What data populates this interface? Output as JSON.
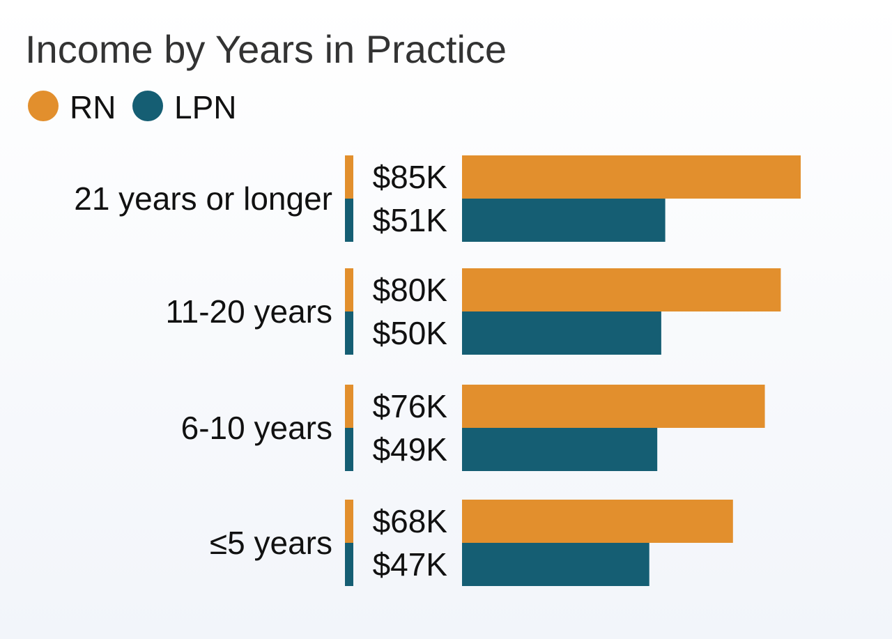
{
  "chart_data": {
    "type": "bar",
    "orientation": "horizontal",
    "title": "Income by Years in Practice",
    "legend_position": "top-left",
    "grid": false,
    "categories": [
      "21 years or longer",
      "11-20 years",
      "6-10 years",
      "≤5 years"
    ],
    "series": [
      {
        "name": "RN",
        "color": "#E28F2D",
        "values": [
          85,
          80,
          76,
          68
        ],
        "labels": [
          "$85K",
          "$80K",
          "$76K",
          "$68K"
        ]
      },
      {
        "name": "LPN",
        "color": "#155E73",
        "values": [
          51,
          50,
          49,
          47
        ],
        "labels": [
          "$51K",
          "$50K",
          "$49K",
          "$47K"
        ]
      }
    ],
    "xlim": [
      0,
      85
    ]
  }
}
